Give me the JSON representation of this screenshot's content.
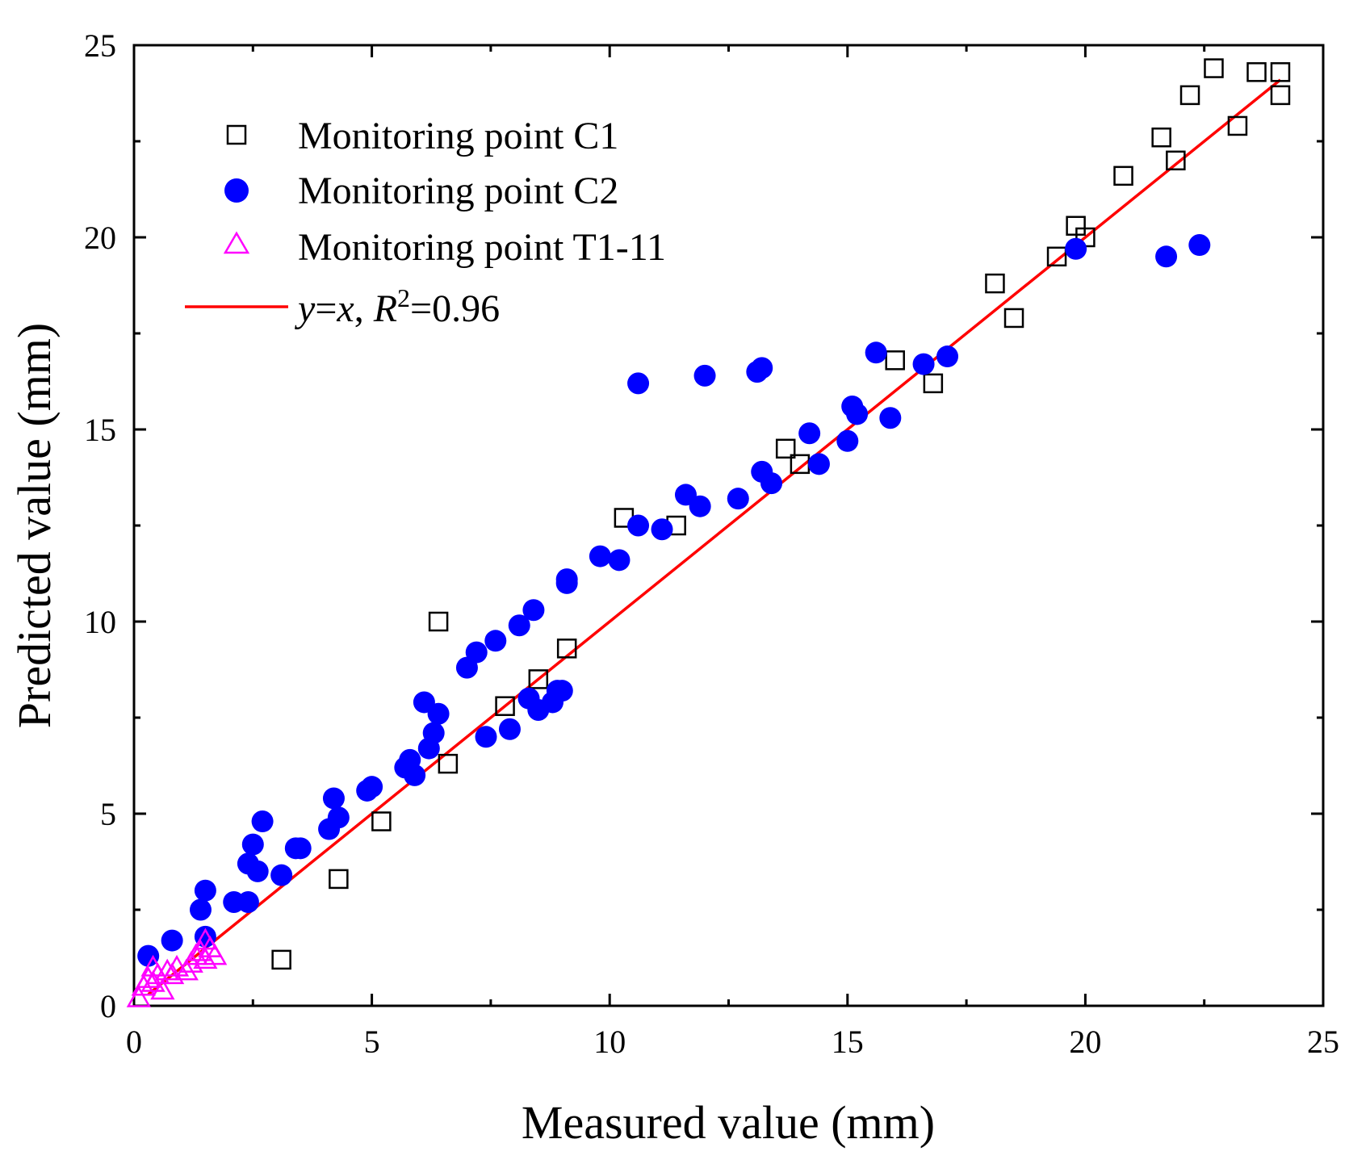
{
  "chart_data": {
    "type": "scatter",
    "title": "",
    "xlabel": "Measured value (mm)",
    "ylabel": "Predicted value (mm)",
    "xlim": [
      0,
      25
    ],
    "ylim": [
      0,
      25
    ],
    "xticks": [
      0,
      5,
      10,
      15,
      20,
      25
    ],
    "yticks": [
      0,
      5,
      10,
      15,
      20,
      25
    ],
    "grid": false,
    "legend_position": "top-left",
    "series": [
      {
        "name": "Monitoring point C1",
        "marker": "open-square",
        "color": "#000000",
        "points": [
          [
            3.1,
            1.2
          ],
          [
            4.3,
            3.3
          ],
          [
            5.2,
            4.8
          ],
          [
            6.6,
            6.3
          ],
          [
            6.4,
            10.0
          ],
          [
            7.8,
            7.8
          ],
          [
            8.5,
            8.5
          ],
          [
            9.1,
            9.3
          ],
          [
            10.3,
            12.7
          ],
          [
            11.4,
            12.5
          ],
          [
            13.7,
            14.5
          ],
          [
            14.0,
            14.1
          ],
          [
            16.0,
            16.8
          ],
          [
            16.8,
            16.2
          ],
          [
            18.1,
            18.8
          ],
          [
            18.5,
            17.9
          ],
          [
            19.4,
            19.5
          ],
          [
            19.8,
            20.3
          ],
          [
            20.0,
            20.0
          ],
          [
            20.8,
            21.6
          ],
          [
            21.6,
            22.6
          ],
          [
            21.9,
            22.0
          ],
          [
            22.2,
            23.7
          ],
          [
            22.7,
            24.4
          ],
          [
            23.2,
            22.9
          ],
          [
            23.6,
            24.3
          ],
          [
            24.1,
            24.3
          ],
          [
            24.1,
            23.7
          ]
        ]
      },
      {
        "name": "Monitoring point C2",
        "marker": "filled-circle",
        "color": "#0000FF",
        "points": [
          [
            0.3,
            1.3
          ],
          [
            0.8,
            1.7
          ],
          [
            1.4,
            2.5
          ],
          [
            1.5,
            3.0
          ],
          [
            1.5,
            1.8
          ],
          [
            2.1,
            2.7
          ],
          [
            2.4,
            2.7
          ],
          [
            2.4,
            3.7
          ],
          [
            2.5,
            4.2
          ],
          [
            2.6,
            3.5
          ],
          [
            2.7,
            4.8
          ],
          [
            3.1,
            3.4
          ],
          [
            3.4,
            4.1
          ],
          [
            3.5,
            4.1
          ],
          [
            4.1,
            4.6
          ],
          [
            4.2,
            5.4
          ],
          [
            4.3,
            4.9
          ],
          [
            4.9,
            5.6
          ],
          [
            5.0,
            5.7
          ],
          [
            5.7,
            6.2
          ],
          [
            5.8,
            6.4
          ],
          [
            5.9,
            6.0
          ],
          [
            6.1,
            7.9
          ],
          [
            6.2,
            6.7
          ],
          [
            6.3,
            7.1
          ],
          [
            6.4,
            7.6
          ],
          [
            7.0,
            8.8
          ],
          [
            7.2,
            9.2
          ],
          [
            7.4,
            7.0
          ],
          [
            7.6,
            9.5
          ],
          [
            7.9,
            7.2
          ],
          [
            8.1,
            9.9
          ],
          [
            8.3,
            8.0
          ],
          [
            8.4,
            10.3
          ],
          [
            8.5,
            7.7
          ],
          [
            8.8,
            7.9
          ],
          [
            8.9,
            8.2
          ],
          [
            9.0,
            8.2
          ],
          [
            9.1,
            11.0
          ],
          [
            9.1,
            11.1
          ],
          [
            9.8,
            11.7
          ],
          [
            10.2,
            11.6
          ],
          [
            10.6,
            12.5
          ],
          [
            10.6,
            16.2
          ],
          [
            11.1,
            12.4
          ],
          [
            11.6,
            13.3
          ],
          [
            11.9,
            13.0
          ],
          [
            12.0,
            16.4
          ],
          [
            12.7,
            13.2
          ],
          [
            13.1,
            16.5
          ],
          [
            13.2,
            13.9
          ],
          [
            13.2,
            16.6
          ],
          [
            13.4,
            13.6
          ],
          [
            14.2,
            14.9
          ],
          [
            14.4,
            14.1
          ],
          [
            15.0,
            14.7
          ],
          [
            15.1,
            15.6
          ],
          [
            15.2,
            15.4
          ],
          [
            15.6,
            17.0
          ],
          [
            15.9,
            15.3
          ],
          [
            16.6,
            16.7
          ],
          [
            17.1,
            16.9
          ],
          [
            19.8,
            19.7
          ],
          [
            21.7,
            19.5
          ],
          [
            22.4,
            19.8
          ]
        ]
      },
      {
        "name": "Monitoring point T1-11",
        "marker": "open-triangle",
        "color": "#FF00FF",
        "points": [
          [
            0.1,
            0.2
          ],
          [
            0.2,
            0.5
          ],
          [
            0.3,
            0.7
          ],
          [
            0.4,
            1.0
          ],
          [
            0.4,
            0.6
          ],
          [
            0.5,
            0.8
          ],
          [
            0.6,
            0.4
          ],
          [
            0.7,
            0.9
          ],
          [
            0.8,
            0.8
          ],
          [
            0.9,
            1.0
          ],
          [
            1.1,
            0.9
          ],
          [
            1.2,
            1.1
          ],
          [
            1.3,
            1.3
          ],
          [
            1.4,
            1.4
          ],
          [
            1.5,
            1.7
          ],
          [
            1.5,
            1.2
          ],
          [
            1.6,
            1.5
          ],
          [
            1.7,
            1.3
          ]
        ]
      }
    ],
    "fit_line": {
      "name": "y=x, R²=0.96",
      "equation_lhs": "y",
      "equation_eq": "=",
      "equation_rhs": "x",
      "separator": ", ",
      "r_symbol": "R",
      "r_superscript": "2",
      "r_value": "=0.96",
      "color": "#FF0000",
      "x_range": [
        0.3,
        24.1
      ]
    }
  }
}
